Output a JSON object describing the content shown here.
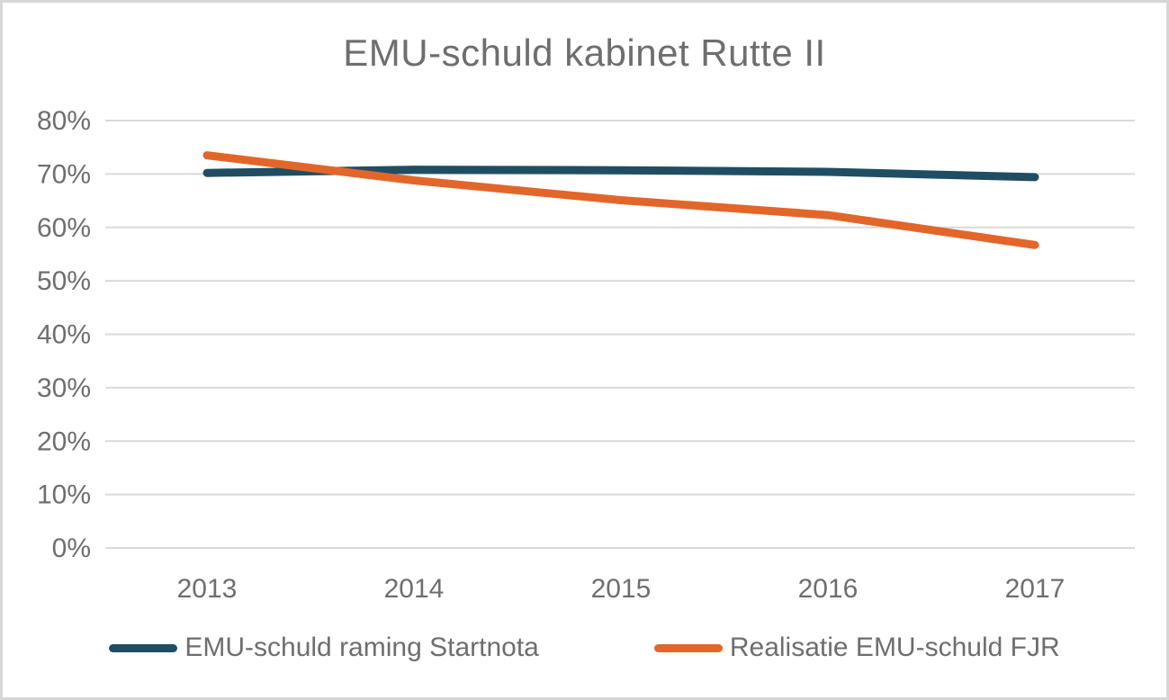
{
  "chart_data": {
    "type": "line",
    "title": "EMU-schuld kabinet Rutte II",
    "categories": [
      "2013",
      "2014",
      "2015",
      "2016",
      "2017"
    ],
    "yticks": [
      "80%",
      "70%",
      "60%",
      "50%",
      "40%",
      "30%",
      "20%",
      "10%",
      "0%"
    ],
    "ylim": [
      0,
      80
    ],
    "xlabel": "",
    "ylabel": "",
    "grid": "horizontal",
    "legend_position": "bottom",
    "gridline_color": "#d9d9d9",
    "text_color": "#6e6e6e",
    "series": [
      {
        "name": "EMU-schuld raming Startnota",
        "color": "#1f4e63",
        "values": [
          70.2,
          70.8,
          70.7,
          70.4,
          69.4
        ]
      },
      {
        "name": "Realisatie EMU-schuld FJR",
        "color": "#e2662a",
        "values": [
          73.5,
          68.8,
          65.1,
          62.3,
          56.7
        ]
      }
    ]
  }
}
